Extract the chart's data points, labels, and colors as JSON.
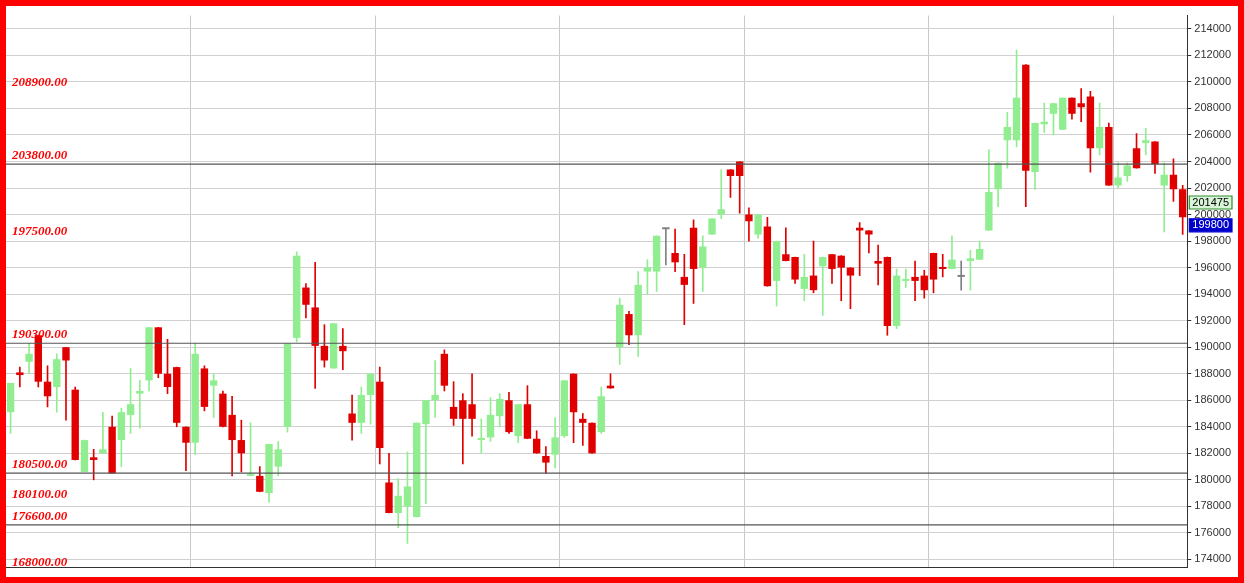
{
  "chart_data": {
    "type": "candlestick",
    "categories": [
      null,
      null,
      null,
      null,
      null,
      null,
      null,
      null,
      null,
      null,
      null,
      null,
      null,
      null,
      null,
      null,
      null,
      null,
      null,
      null,
      null,
      null,
      null,
      null,
      null,
      null,
      null,
      null,
      null,
      null,
      null,
      null,
      null,
      null,
      null,
      null,
      null,
      null,
      null,
      null,
      null,
      null,
      null,
      null,
      null,
      null,
      null,
      null,
      null,
      null,
      null,
      null,
      null,
      null,
      null,
      null,
      null,
      null,
      null,
      null,
      null,
      null,
      null,
      null,
      null,
      null,
      null,
      null,
      null,
      null,
      null,
      null,
      null,
      null,
      null,
      null,
      null,
      null,
      null,
      null,
      null,
      null,
      null,
      null,
      null,
      null,
      null,
      null,
      null,
      null,
      null,
      null,
      null,
      null,
      null,
      null,
      null,
      null,
      null,
      null,
      null,
      null,
      null,
      null,
      null,
      null,
      null,
      null,
      null,
      null,
      null,
      null,
      null,
      null,
      null,
      null,
      null,
      null,
      null,
      null,
      null,
      null,
      null,
      null,
      null,
      null,
      null,
      null
    ],
    "ohlc": [
      [
        185100,
        187300,
        183500,
        187300
      ],
      [
        188100,
        188500,
        187000,
        187900
      ],
      [
        188900,
        190300,
        188000,
        189500
      ],
      [
        190900,
        190900,
        187000,
        187400
      ],
      [
        187400,
        188600,
        185500,
        186300
      ],
      [
        187000,
        189500,
        185100,
        189100
      ],
      [
        190000,
        190000,
        184500,
        189000
      ],
      [
        186800,
        187000,
        181500,
        181500
      ],
      [
        180600,
        183000,
        180600,
        183000
      ],
      [
        181700,
        182300,
        180000,
        181500
      ],
      [
        182000,
        185100,
        182000,
        182300
      ],
      [
        184000,
        184800,
        180500,
        180500
      ],
      [
        183000,
        185400,
        181000,
        185100
      ],
      [
        184900,
        188400,
        183500,
        185700
      ],
      [
        186500,
        187500,
        183900,
        186700
      ],
      [
        187500,
        191500,
        186700,
        191500
      ],
      [
        191500,
        191500,
        187700,
        188000
      ],
      [
        188000,
        190600,
        186500,
        187000
      ],
      [
        188500,
        188500,
        184000,
        184300
      ],
      [
        184000,
        184000,
        180700,
        182800
      ],
      [
        182800,
        190300,
        181900,
        189500
      ],
      [
        188400,
        188600,
        185200,
        185500
      ],
      [
        187100,
        188000,
        184700,
        187500
      ],
      [
        186500,
        186700,
        184000,
        184000
      ],
      [
        184900,
        186300,
        180300,
        183000
      ],
      [
        183000,
        184500,
        180600,
        182000
      ],
      [
        180300,
        184300,
        180300,
        180400
      ],
      [
        180300,
        181000,
        179100,
        179100
      ],
      [
        179000,
        182700,
        178300,
        182700
      ],
      [
        181000,
        182900,
        180300,
        182300
      ],
      [
        184000,
        190300,
        183600,
        190300
      ],
      [
        190700,
        197200,
        190400,
        196900
      ],
      [
        194500,
        194800,
        192200,
        193200
      ],
      [
        193000,
        196400,
        186900,
        190100
      ],
      [
        190100,
        191700,
        188500,
        189000
      ],
      [
        188400,
        191800,
        188400,
        191800
      ],
      [
        190100,
        191400,
        188300,
        189700
      ],
      [
        185000,
        186400,
        183000,
        184300
      ],
      [
        184300,
        187000,
        183500,
        186400
      ],
      [
        186400,
        188000,
        184200,
        188000
      ],
      [
        187400,
        188500,
        181200,
        182400
      ],
      [
        179800,
        182000,
        177500,
        177500
      ],
      [
        177500,
        180100,
        176400,
        178800
      ],
      [
        178000,
        182100,
        175200,
        179500
      ],
      [
        177200,
        184300,
        177200,
        184300
      ],
      [
        184200,
        186000,
        178200,
        186000
      ],
      [
        186000,
        189000,
        184700,
        186400
      ],
      [
        189500,
        189800,
        186700,
        187100
      ],
      [
        185500,
        187400,
        184100,
        184600
      ],
      [
        186000,
        186500,
        181200,
        184600
      ],
      [
        185700,
        188000,
        183300,
        184600
      ],
      [
        183000,
        184600,
        182000,
        183100
      ],
      [
        183200,
        186200,
        182900,
        184900
      ],
      [
        184800,
        186500,
        184000,
        186100
      ],
      [
        186000,
        186600,
        183500,
        183600
      ],
      [
        183300,
        185700,
        182800,
        185700
      ],
      [
        185700,
        187100,
        183100,
        183100
      ],
      [
        183100,
        183700,
        182000,
        182000
      ],
      [
        181800,
        182500,
        180500,
        181300
      ],
      [
        181900,
        184700,
        180900,
        183200
      ],
      [
        183300,
        187500,
        183200,
        187500
      ],
      [
        188000,
        188000,
        182800,
        185100
      ],
      [
        184600,
        185000,
        182600,
        184300
      ],
      [
        184300,
        184300,
        182000,
        182000
      ],
      [
        183600,
        187000,
        183500,
        186300
      ],
      [
        187100,
        188000,
        186900,
        186900
      ],
      [
        190000,
        193700,
        188700,
        193200
      ],
      [
        192500,
        192700,
        190200,
        190900
      ],
      [
        190900,
        195700,
        189300,
        194700
      ],
      [
        195700,
        196600,
        194000,
        196000
      ],
      [
        195700,
        198400,
        194200,
        198400
      ],
      [
        198900,
        198900,
        196200,
        198900
      ],
      [
        197100,
        198900,
        195700,
        196400
      ],
      [
        195300,
        197000,
        191700,
        194700
      ],
      [
        199000,
        199600,
        193300,
        195900
      ],
      [
        196000,
        198400,
        194200,
        197600
      ],
      [
        198500,
        199700,
        198500,
        199700
      ],
      [
        200000,
        203400,
        199700,
        200400
      ],
      [
        203400,
        203400,
        201300,
        202900
      ],
      [
        204000,
        204000,
        200100,
        202900
      ],
      [
        200000,
        200500,
        198000,
        199500
      ],
      [
        198500,
        200000,
        198200,
        200000
      ],
      [
        199100,
        199800,
        194600,
        194600
      ],
      [
        195000,
        198000,
        193100,
        198000
      ],
      [
        197000,
        199000,
        196500,
        196500
      ],
      [
        196800,
        196800,
        194800,
        195100
      ],
      [
        194400,
        197000,
        193500,
        195300
      ],
      [
        195400,
        198000,
        194100,
        194300
      ],
      [
        196100,
        196800,
        192400,
        196800
      ],
      [
        197000,
        197000,
        194800,
        195900
      ],
      [
        196900,
        196900,
        193500,
        196000
      ],
      [
        196000,
        196000,
        192900,
        195400
      ],
      [
        199000,
        199400,
        195400,
        198800
      ],
      [
        198800,
        198800,
        197100,
        198500
      ],
      [
        196500,
        197700,
        194700,
        196300
      ],
      [
        196800,
        196800,
        190900,
        191600
      ],
      [
        191600,
        195900,
        191400,
        195400
      ],
      [
        195000,
        195900,
        194500,
        195100
      ],
      [
        195300,
        196500,
        193500,
        195000
      ],
      [
        195400,
        195800,
        193700,
        194300
      ],
      [
        197100,
        197100,
        194100,
        195100
      ],
      [
        196000,
        197000,
        195300,
        195900
      ],
      [
        195900,
        198400,
        195900,
        196600
      ],
      [
        195300,
        196500,
        194300,
        195300
      ],
      [
        196500,
        197300,
        194300,
        196700
      ],
      [
        196600,
        198000,
        196600,
        197400
      ],
      [
        198800,
        204900,
        198800,
        201700
      ],
      [
        201900,
        203900,
        200600,
        203900
      ],
      [
        205600,
        207700,
        203500,
        206600
      ],
      [
        205600,
        212400,
        205100,
        208800
      ],
      [
        211300,
        211300,
        200600,
        203300
      ],
      [
        203200,
        206900,
        201900,
        206900
      ],
      [
        206800,
        208400,
        206200,
        207000
      ],
      [
        207600,
        208400,
        206000,
        208400
      ],
      [
        206400,
        208800,
        206400,
        208800
      ],
      [
        208800,
        208800,
        207200,
        207600
      ],
      [
        208400,
        209500,
        207000,
        208100
      ],
      [
        208900,
        209300,
        203200,
        205000
      ],
      [
        205000,
        208400,
        204500,
        206600
      ],
      [
        206600,
        206900,
        202200,
        202200
      ],
      [
        202200,
        203900,
        202000,
        202800
      ],
      [
        202900,
        203900,
        202500,
        203700
      ],
      [
        205000,
        206100,
        203500,
        203500
      ],
      [
        205400,
        206500,
        204500,
        205600
      ],
      [
        205500,
        205500,
        203100,
        203800
      ],
      [
        202200,
        203900,
        198700,
        203000
      ],
      [
        203000,
        204200,
        201000,
        201900
      ],
      [
        201900,
        202200,
        198500,
        199800
      ]
    ],
    "colors": [
      "#90ee90",
      "#e00000",
      "#90ee90",
      "#e00000",
      "#e00000",
      "#90ee90",
      "#e00000",
      "#e00000",
      "#90ee90",
      "#e00000",
      "#90ee90",
      "#e00000",
      "#90ee90",
      "#90ee90",
      "#90ee90",
      "#90ee90",
      "#e00000",
      "#e00000",
      "#e00000",
      "#e00000",
      "#90ee90",
      "#e00000",
      "#90ee90",
      "#e00000",
      "#e00000",
      "#e00000",
      "#90ee90",
      "#e00000",
      "#90ee90",
      "#90ee90",
      "#90ee90",
      "#90ee90",
      "#e00000",
      "#e00000",
      "#e00000",
      "#90ee90",
      "#e00000",
      "#e00000",
      "#90ee90",
      "#90ee90",
      "#e00000",
      "#e00000",
      "#90ee90",
      "#90ee90",
      "#90ee90",
      "#90ee90",
      "#90ee90",
      "#e00000",
      "#e00000",
      "#e00000",
      "#e00000",
      "#90ee90",
      "#90ee90",
      "#90ee90",
      "#e00000",
      "#90ee90",
      "#e00000",
      "#e00000",
      "#e00000",
      "#90ee90",
      "#90ee90",
      "#e00000",
      "#e00000",
      "#e00000",
      "#90ee90",
      "#e00000",
      "#90ee90",
      "#e00000",
      "#90ee90",
      "#90ee90",
      "#90ee90",
      "#808080",
      "#e00000",
      "#e00000",
      "#e00000",
      "#90ee90",
      "#90ee90",
      "#90ee90",
      "#e00000",
      "#e00000",
      "#e00000",
      "#90ee90",
      "#e00000",
      "#90ee90",
      "#e00000",
      "#e00000",
      "#90ee90",
      "#e00000",
      "#90ee90",
      "#e00000",
      "#e00000",
      "#e00000",
      "#e00000",
      "#e00000",
      "#e00000",
      "#e00000",
      "#90ee90",
      "#90ee90",
      "#e00000",
      "#e00000",
      "#e00000",
      "#e00000",
      "#90ee90",
      "#808080",
      "#90ee90",
      "#90ee90",
      "#90ee90",
      "#90ee90",
      "#90ee90",
      "#90ee90",
      "#e00000",
      "#90ee90",
      "#90ee90",
      "#90ee90",
      "#90ee90",
      "#e00000",
      "#e00000",
      "#e00000",
      "#90ee90",
      "#e00000",
      "#90ee90",
      "#90ee90",
      "#e00000",
      "#90ee90",
      "#e00000",
      "#90ee90",
      "#e00000",
      "#e00000"
    ],
    "ylim": [
      173400,
      215000
    ],
    "yticks": [
      174000,
      176000,
      178000,
      180000,
      182000,
      184000,
      186000,
      188000,
      190000,
      192000,
      194000,
      196000,
      198000,
      200000,
      202000,
      204000,
      206000,
      208000,
      210000,
      212000,
      214000
    ],
    "grid": true,
    "legend": false,
    "ref_lines": [
      {
        "axis": "y",
        "value": 203800,
        "label": "203800.00",
        "color": "#555555"
      },
      {
        "axis": "y",
        "value": 190300,
        "label": "190300.00",
        "color": "#555555"
      },
      {
        "axis": "y",
        "value": 180500,
        "label": "180500.00",
        "color": "#555555"
      },
      {
        "axis": "y",
        "value": 176600,
        "label": "176600.00",
        "color": "#555555"
      }
    ],
    "annotations": [
      "208900.00",
      "197500.00",
      "180100.00",
      "168000.00",
      "201475",
      "199800"
    ]
  }
}
